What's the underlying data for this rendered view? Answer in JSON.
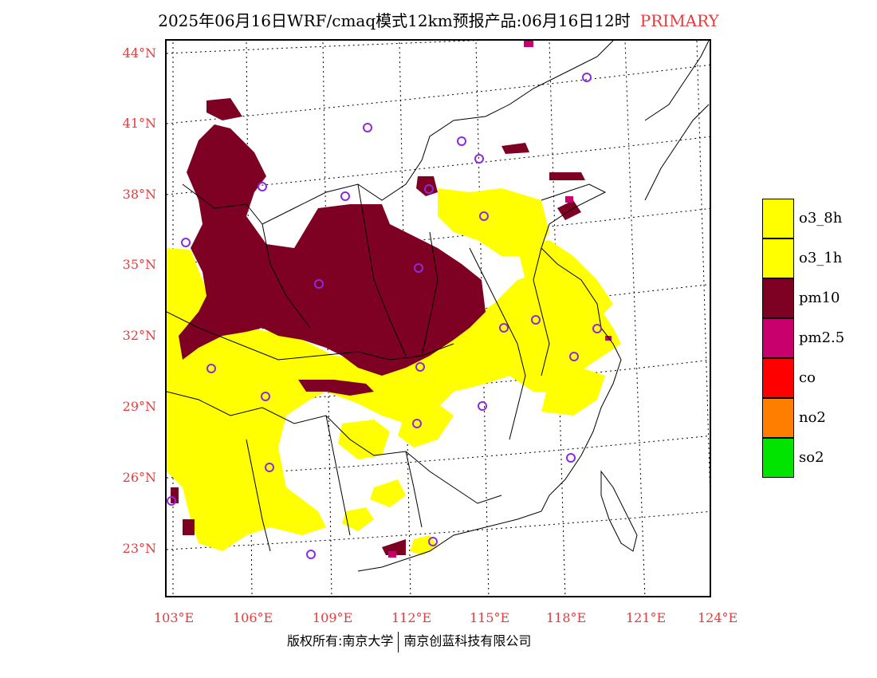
{
  "title": {
    "main": "2025年06月16日WRF/cmaq模式12km预报产品:06月16日12时",
    "tag": "PRIMARY",
    "tag_color": "#e83b3b"
  },
  "axes": {
    "latitudes": [
      "44°N",
      "41°N",
      "38°N",
      "35°N",
      "32°N",
      "29°N",
      "26°N",
      "23°N"
    ],
    "longitudes": [
      "103°E",
      "106°E",
      "109°E",
      "112°E",
      "115°E",
      "118°E",
      "121°E",
      "124°E"
    ],
    "label_color": "#e83b3b"
  },
  "legend": {
    "items": [
      {
        "label": "o3_8h",
        "color": "#ffff00"
      },
      {
        "label": "o3_1h",
        "color": "#ffff00"
      },
      {
        "label": "pm10",
        "color": "#7e0023"
      },
      {
        "label": "pm2.5",
        "color": "#c8006e"
      },
      {
        "label": "co",
        "color": "#ff0000"
      },
      {
        "label": "no2",
        "color": "#ff7e00"
      },
      {
        "label": "so2",
        "color": "#00e400"
      }
    ]
  },
  "footer": {
    "left": "版权所有:南京大学",
    "right": "南京创蓝科技有限公司"
  },
  "map": {
    "pm10_color": "#7e0023",
    "o3_color": "#ffff00",
    "pm25_color": "#c8006e",
    "station_marker_color": "#8a2be2",
    "border_color": "#000000"
  }
}
